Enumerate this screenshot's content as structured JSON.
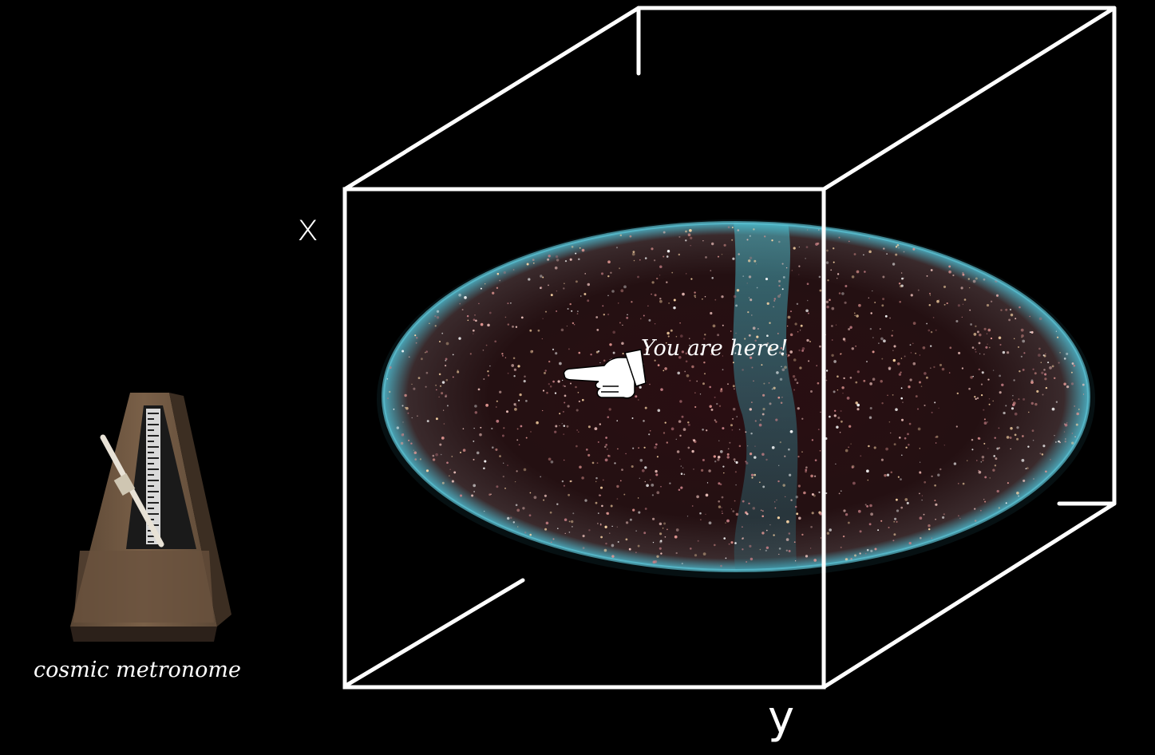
{
  "labels": {
    "axis_x": "x",
    "axis_y": "y",
    "here": "You are here!",
    "metronome": "cosmic metronome"
  },
  "colors": {
    "background": "#000000",
    "cube_edges": "#ffffff",
    "sky_map_rim": "#3fa3b8",
    "galaxies": "#e8b4b0",
    "metronome_wood": "#6e5641"
  },
  "icons": {
    "pointer": "pointing-hand-icon",
    "metronome": "metronome-icon"
  }
}
